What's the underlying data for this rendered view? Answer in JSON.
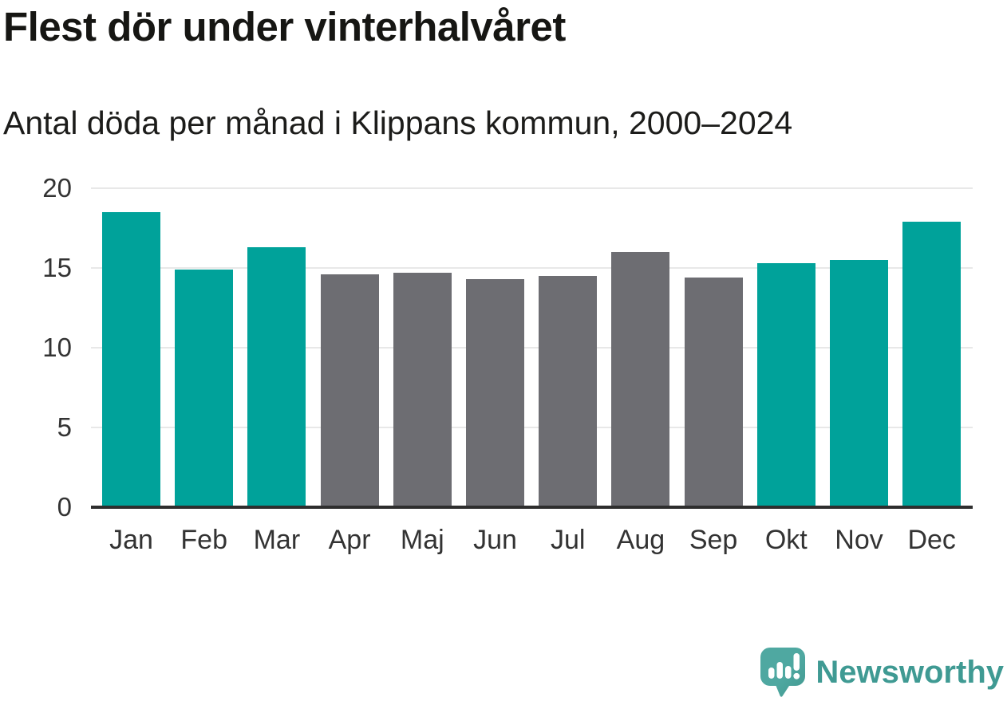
{
  "chart_data": {
    "type": "bar",
    "title": "Flest dör under vinterhalvåret",
    "subtitle": "Antal döda per månad i Klippans kommun, 2000–2024",
    "categories": [
      "Jan",
      "Feb",
      "Mar",
      "Apr",
      "Maj",
      "Jun",
      "Jul",
      "Aug",
      "Sep",
      "Okt",
      "Nov",
      "Dec"
    ],
    "values": [
      18.5,
      14.9,
      16.3,
      14.6,
      14.7,
      14.3,
      14.5,
      16.0,
      14.4,
      15.3,
      15.5,
      17.9
    ],
    "bar_color_keys": [
      "winter",
      "winter",
      "winter",
      "summer",
      "summer",
      "summer",
      "summer",
      "summer",
      "summer",
      "winter",
      "winter",
      "winter"
    ],
    "colors": {
      "winter": "#00a29a",
      "summer": "#6d6d72"
    },
    "xlabel": "",
    "ylabel": "",
    "ylim": [
      0,
      20
    ],
    "yticks": [
      0,
      5,
      10,
      15,
      20
    ],
    "grid": "horizontal",
    "legend": "none",
    "gridline_color": "#e8e8e8",
    "axisline_color": "#2e2e2e",
    "tick_label_color": "#333333"
  },
  "footer": {
    "brand": "Newsworthy",
    "brand_color": "#3f9a93",
    "logo_color": "#4fa8a1",
    "logo_color_dark": "#41988f"
  }
}
